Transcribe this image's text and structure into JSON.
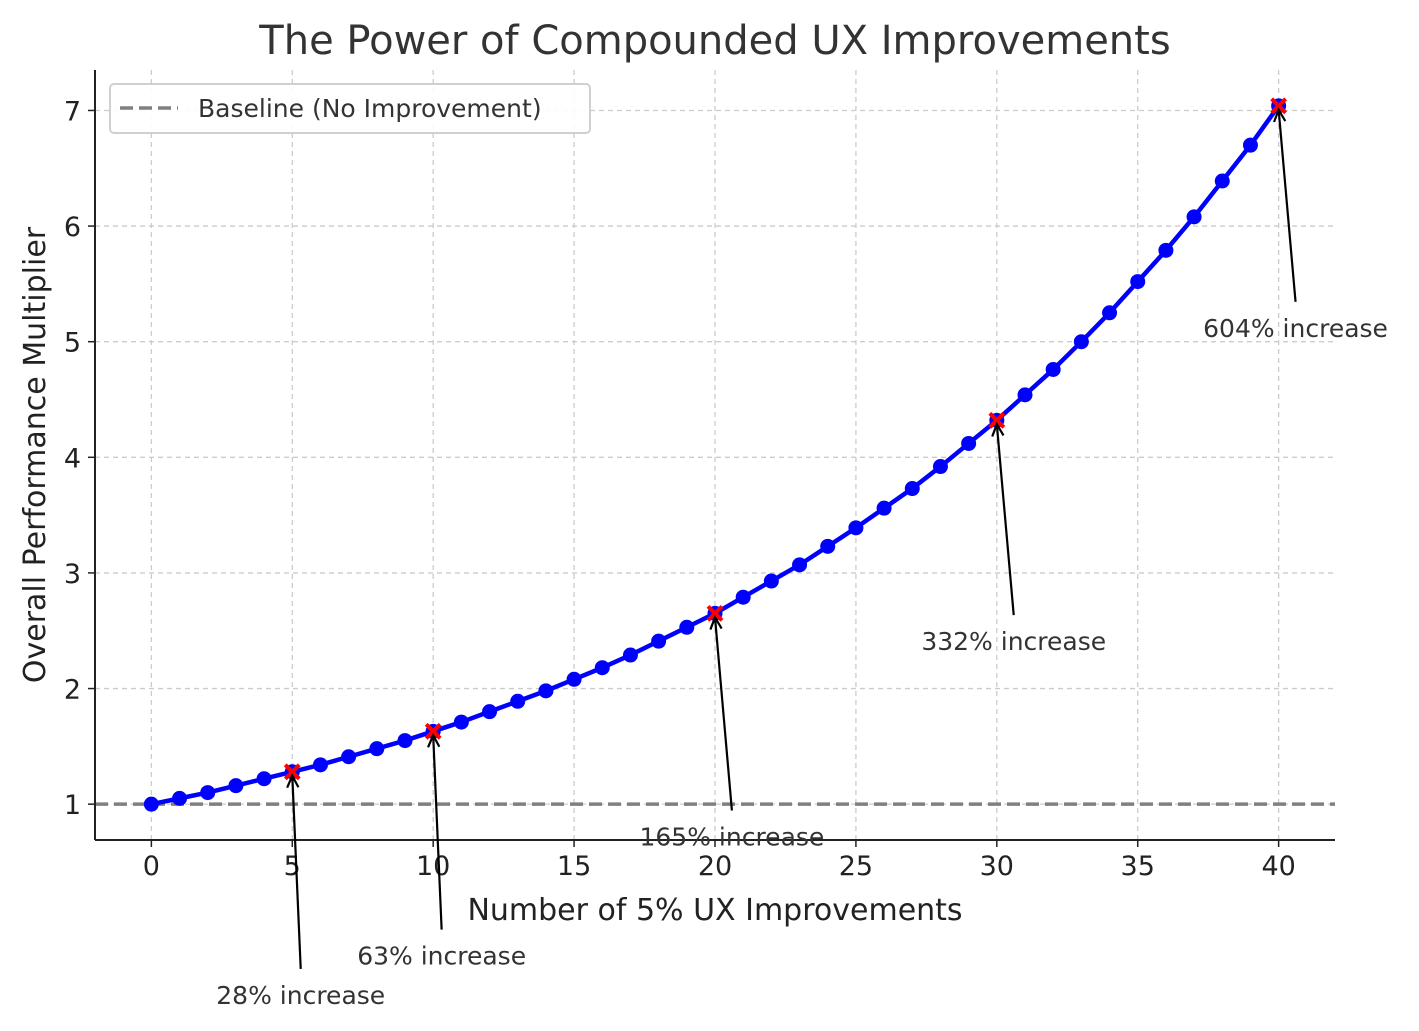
{
  "chart_data": {
    "type": "line",
    "title": "The Power of Compounded UX Improvements",
    "xlabel": "Number of 5% UX Improvements",
    "ylabel": "Overall Performance Multiplier",
    "xlim": [
      -2,
      42
    ],
    "ylim": [
      0.69,
      7.35
    ],
    "xticks": [
      0,
      5,
      10,
      15,
      20,
      25,
      30,
      35,
      40
    ],
    "yticks": [
      1,
      2,
      3,
      4,
      5,
      6,
      7
    ],
    "grid": true,
    "legend": {
      "placement": "top-left",
      "entries": [
        "Baseline (No Improvement)"
      ]
    },
    "x": [
      0,
      1,
      2,
      3,
      4,
      5,
      6,
      7,
      8,
      9,
      10,
      11,
      12,
      13,
      14,
      15,
      16,
      17,
      18,
      19,
      20,
      21,
      22,
      23,
      24,
      25,
      26,
      27,
      28,
      29,
      30,
      31,
      32,
      33,
      34,
      35,
      36,
      37,
      38,
      39,
      40
    ],
    "series": [
      {
        "values": [
          1.0,
          1.05,
          1.1,
          1.16,
          1.22,
          1.28,
          1.34,
          1.41,
          1.48,
          1.55,
          1.63,
          1.71,
          1.8,
          1.89,
          1.98,
          2.08,
          2.18,
          2.29,
          2.41,
          2.53,
          2.65,
          2.79,
          2.93,
          3.07,
          3.23,
          3.39,
          3.56,
          3.73,
          3.92,
          4.12,
          4.32,
          4.54,
          4.76,
          5.0,
          5.25,
          5.52,
          5.79,
          6.08,
          6.39,
          6.7,
          7.04
        ],
        "color": "#0000ff",
        "marker": "circle"
      }
    ],
    "baseline": {
      "name": "Baseline (No Improvement)",
      "y": 1,
      "color": "#808080",
      "style": "dashed"
    },
    "highlights": {
      "x": [
        5,
        10,
        20,
        30,
        40
      ],
      "y": [
        1.28,
        1.63,
        2.65,
        4.32,
        7.04
      ],
      "color": "#ff0000",
      "marker": "x"
    },
    "annotations": [
      {
        "text": "28% increase",
        "x": 5,
        "y": 1.28,
        "text_x": 5.3,
        "text_y": -0.65
      },
      {
        "text": "63% increase",
        "x": 10,
        "y": 1.63,
        "text_x": 10.3,
        "text_y": -0.31
      },
      {
        "text": "165% increase",
        "x": 20,
        "y": 2.65,
        "text_x": 20.6,
        "text_y": 0.72
      },
      {
        "text": "332% increase",
        "x": 30,
        "y": 4.32,
        "text_x": 30.6,
        "text_y": 2.41
      },
      {
        "text": "604% increase",
        "x": 40,
        "y": 7.04,
        "text_x": 40.6,
        "text_y": 5.12
      }
    ]
  }
}
